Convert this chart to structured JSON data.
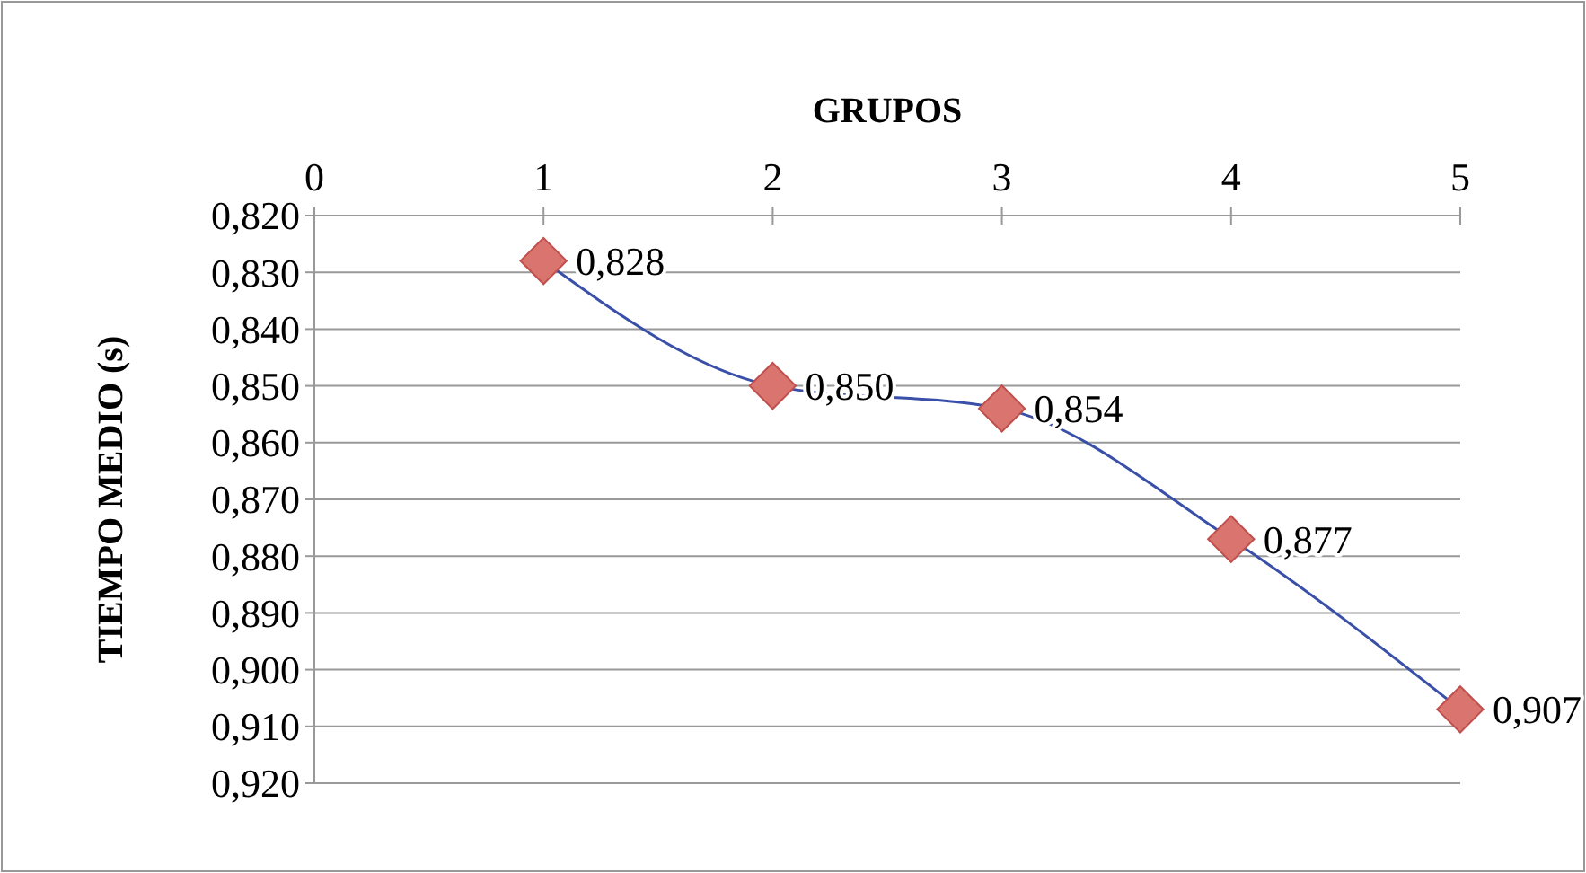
{
  "chart_data": {
    "type": "line",
    "xlabel": "GRUPOS",
    "ylabel": "TIEMPO MEDIO (s)",
    "x": [
      1,
      2,
      3,
      4,
      5
    ],
    "series": [
      {
        "color": "#3a4fa8",
        "values": [
          0.828,
          0.85,
          0.854,
          0.877,
          0.907
        ],
        "value_labels": [
          "0,828",
          "0,850",
          "0,854",
          "0,877",
          "0,907"
        ]
      }
    ],
    "xlim": [
      0,
      5
    ],
    "xticks": [
      0,
      1,
      2,
      3,
      4,
      5
    ],
    "ylim": [
      0.92,
      0.82
    ],
    "yticks": [
      {
        "value": 0.82,
        "label": "0,820"
      },
      {
        "value": 0.83,
        "label": "0,830"
      },
      {
        "value": 0.84,
        "label": "0,840"
      },
      {
        "value": 0.85,
        "label": "0,850"
      },
      {
        "value": 0.86,
        "label": "0,860"
      },
      {
        "value": 0.87,
        "label": "0,870"
      },
      {
        "value": 0.88,
        "label": "0,880"
      },
      {
        "value": 0.89,
        "label": "0,890"
      },
      {
        "value": 0.9,
        "label": "0,900"
      },
      {
        "value": 0.91,
        "label": "0,910"
      },
      {
        "value": 0.92,
        "label": "0,920"
      }
    ],
    "grid": "y",
    "marker": "diamond",
    "line_style": "solid"
  }
}
